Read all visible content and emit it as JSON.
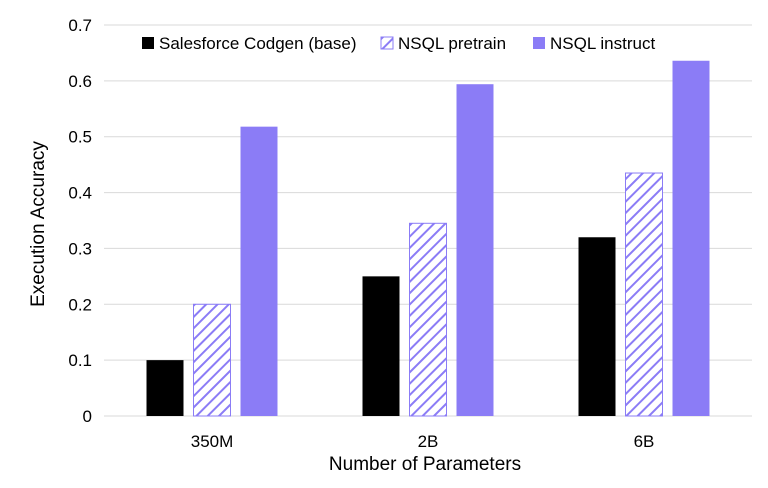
{
  "chart_data": {
    "type": "bar",
    "title": "",
    "xlabel": "Number of Parameters",
    "ylabel": "Execution Accuracy",
    "categories": [
      "350M",
      "2B",
      "6B"
    ],
    "ylim": [
      0,
      0.7
    ],
    "yticks": [
      "0",
      "0.1",
      "0.2",
      "0.3",
      "0.4",
      "0.5",
      "0.6",
      "0.7"
    ],
    "grid": true,
    "legend_position": "top",
    "series": [
      {
        "name": "Salesforce Codgen (base)",
        "values": [
          0.1,
          0.25,
          0.32
        ],
        "color": "#000000",
        "pattern": "solid"
      },
      {
        "name": "NSQL pretrain",
        "values": [
          0.2,
          0.345,
          0.435
        ],
        "color": "#8b7cf6",
        "pattern": "hatched"
      },
      {
        "name": "NSQL instruct",
        "values": [
          0.518,
          0.594,
          0.636
        ],
        "color": "#8b7cf6",
        "pattern": "solid"
      }
    ]
  }
}
